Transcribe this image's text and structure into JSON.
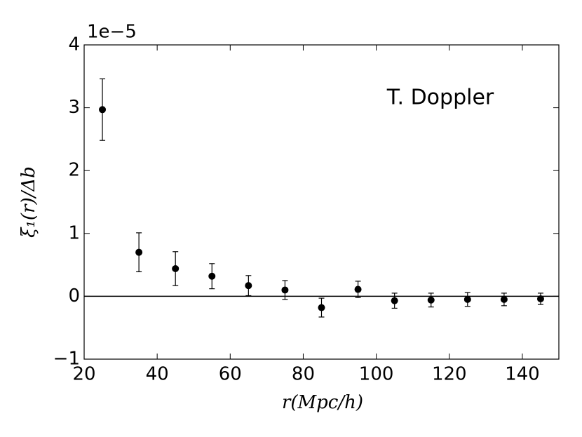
{
  "chart_data": {
    "type": "errorbar-scatter",
    "annotation": "T. Doppler",
    "x_label": "r(Mpc/h)",
    "y_label": "ξ₁(r)/Δb",
    "y_offset_label": "1e−5",
    "x": [
      25,
      35,
      45,
      55,
      65,
      75,
      85,
      95,
      105,
      115,
      125,
      135,
      145
    ],
    "series": [
      {
        "color": "#000000",
        "values": [
          2.97,
          0.7,
          0.44,
          0.32,
          0.17,
          0.1,
          -0.18,
          0.11,
          -0.07,
          -0.06,
          -0.05,
          -0.05,
          -0.04
        ],
        "errors": [
          0.49,
          0.31,
          0.27,
          0.2,
          0.16,
          0.15,
          0.15,
          0.13,
          0.12,
          0.11,
          0.11,
          0.1,
          0.09
        ]
      }
    ],
    "hline": 0,
    "xlim": [
      20,
      150
    ],
    "ylim": [
      -1,
      4
    ],
    "xticks": [
      20,
      40,
      60,
      80,
      100,
      120,
      140
    ],
    "yticks": [
      {
        "value": -1,
        "label": "−1"
      },
      0,
      1,
      2,
      3,
      4
    ]
  }
}
